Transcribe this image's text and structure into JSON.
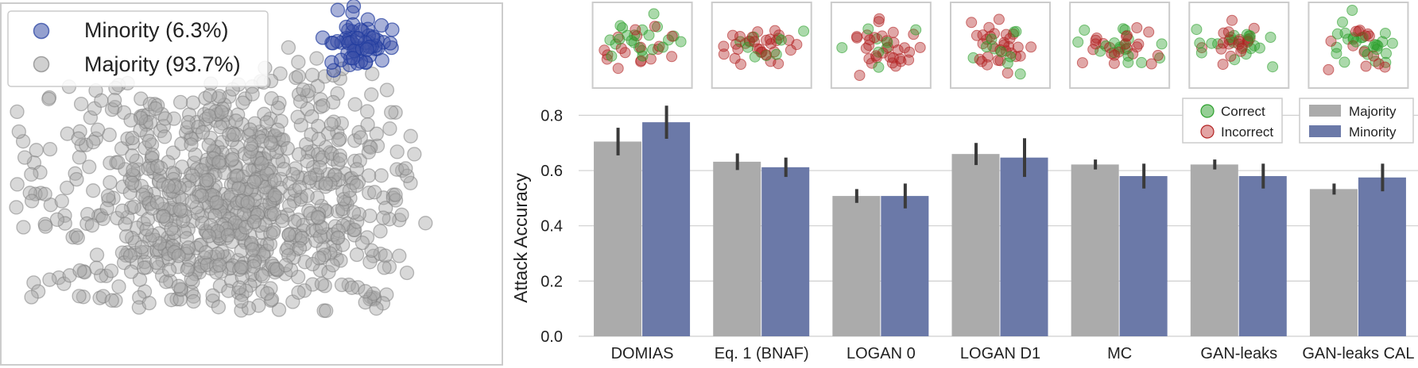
{
  "chart_data": [
    {
      "type": "scatter",
      "title": "",
      "legend": {
        "placement": "top-left",
        "entries": [
          {
            "label": "Minority (6.3%)",
            "color": "#3d52a8"
          },
          {
            "label": "Majority (93.7%)",
            "color": "#a9a9a9"
          }
        ]
      },
      "series": [
        {
          "name": "Minority",
          "share_percent": 6.3,
          "color": "#1f3a9e"
        },
        {
          "name": "Majority",
          "share_percent": 93.7,
          "color": "#808080"
        }
      ],
      "grid": false
    },
    {
      "type": "bar",
      "title": "",
      "xlabel": "",
      "ylabel": "Attack Accuracy",
      "ylim": [
        0,
        0.85
      ],
      "yticks": [
        "0.0",
        "0.2",
        "0.4",
        "0.6",
        "0.8"
      ],
      "ytick_values": [
        0,
        0.2,
        0.4,
        0.6,
        0.8
      ],
      "grid": true,
      "categories": [
        "DOMIAS",
        "Eq. 1 (BNAF)",
        "LOGAN 0",
        "LOGAN D1",
        "MC",
        "GAN-leaks",
        "GAN-leaks CAL"
      ],
      "series": [
        {
          "name": "Majority",
          "color": "#ababab",
          "values": [
            0.705,
            0.632,
            0.508,
            0.66,
            0.622,
            0.622,
            0.533
          ],
          "error": [
            0.05,
            0.03,
            0.025,
            0.04,
            0.018,
            0.018,
            0.02
          ]
        },
        {
          "name": "Minority",
          "color": "#6b79a8",
          "values": [
            0.775,
            0.612,
            0.508,
            0.647,
            0.58,
            0.58,
            0.575
          ],
          "error": [
            0.06,
            0.035,
            0.045,
            0.07,
            0.045,
            0.045,
            0.05
          ]
        }
      ],
      "legend": {
        "placement": "top-right",
        "entries": [
          "Majority",
          "Minority"
        ]
      },
      "marker_legend": {
        "placement": "top-right",
        "entries": [
          {
            "label": "Correct",
            "color": "#2ca02c"
          },
          {
            "label": "Incorrect",
            "color": "#c84a4a"
          }
        ]
      },
      "thumbnails": {
        "count": 7,
        "description_colors": {
          "correct": "#2ca02c",
          "incorrect": "#b22222"
        },
        "correct_fraction": [
          0.5,
          0.3,
          0.2,
          0.35,
          0.45,
          0.4,
          0.6
        ]
      }
    }
  ]
}
